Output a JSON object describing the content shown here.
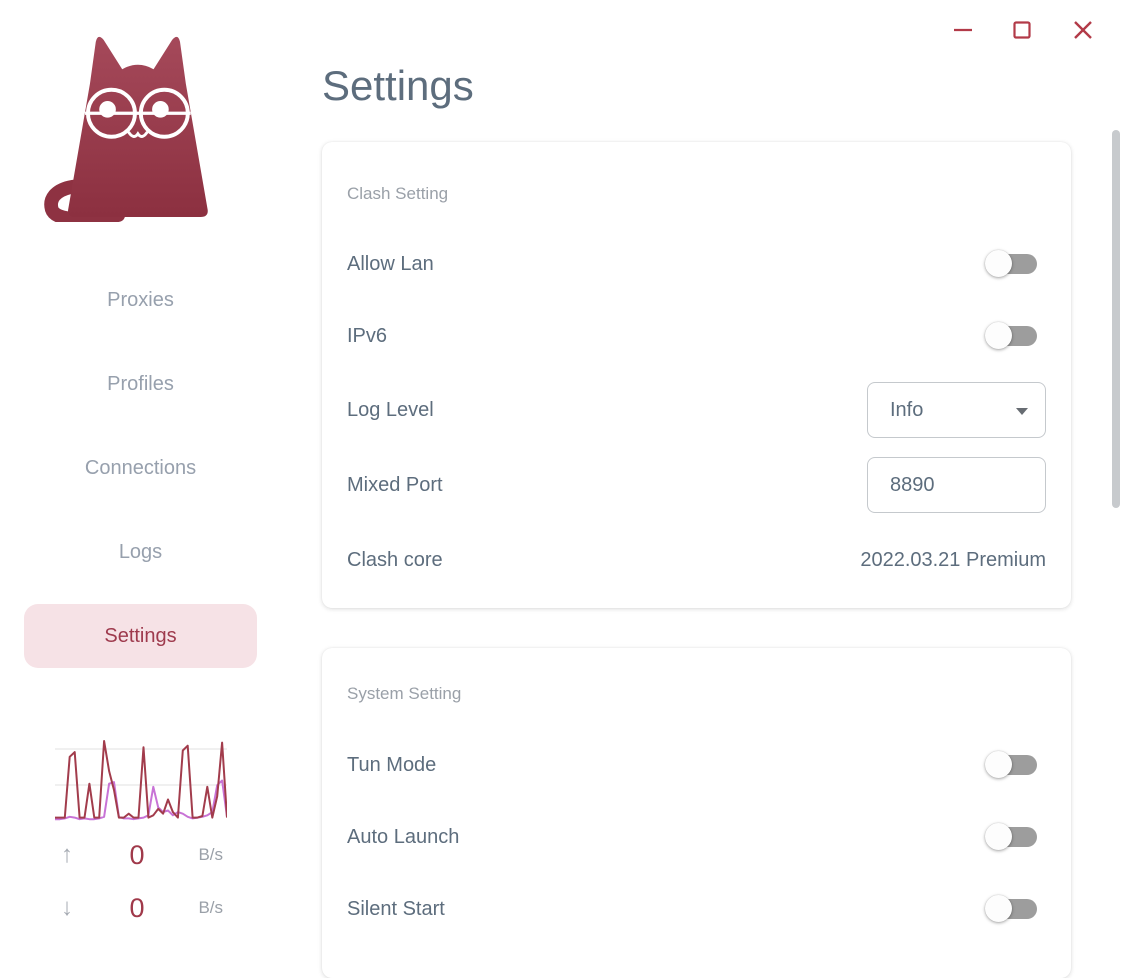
{
  "window": {
    "controls": [
      {
        "name": "minimize"
      },
      {
        "name": "maximize"
      },
      {
        "name": "close"
      }
    ]
  },
  "sidebar": {
    "items": [
      {
        "label": "Proxies",
        "active": false
      },
      {
        "label": "Profiles",
        "active": false
      },
      {
        "label": "Connections",
        "active": false
      },
      {
        "label": "Logs",
        "active": false
      },
      {
        "label": "Settings",
        "active": true
      }
    ],
    "traffic": {
      "up_value": "0",
      "up_unit": "B/s",
      "down_value": "0",
      "down_unit": "B/s"
    }
  },
  "icons": {
    "traffic_up": "↑",
    "traffic_down": "↓"
  },
  "page": {
    "title": "Settings"
  },
  "cards": [
    {
      "section": "Clash Setting",
      "rows": [
        {
          "label": "Allow Lan",
          "control": "toggle",
          "state": "off"
        },
        {
          "label": "IPv6",
          "control": "toggle",
          "state": "off"
        },
        {
          "label": "Log Level",
          "control": "select",
          "value": "Info"
        },
        {
          "label": "Mixed Port",
          "control": "input",
          "value": "8890"
        },
        {
          "label": "Clash core",
          "control": "text",
          "value": "2022.03.21 Premium"
        }
      ]
    },
    {
      "section": "System Setting",
      "rows": [
        {
          "label": "Tun Mode",
          "control": "toggle",
          "state": "off"
        },
        {
          "label": "Auto Launch",
          "control": "toggle",
          "state": "off"
        },
        {
          "label": "Silent Start",
          "control": "toggle",
          "state": "off"
        }
      ]
    }
  ],
  "chart_data": {
    "type": "line",
    "title": "",
    "xlabel": "",
    "ylabel": "",
    "ylim": [
      0,
      100
    ],
    "grid": "horizontal",
    "legend": "none",
    "series": [
      {
        "name": "upload",
        "color": "#c873d6",
        "values": [
          1,
          1,
          2,
          4,
          3,
          1,
          2,
          1,
          1,
          2,
          4,
          46,
          48,
          4,
          2,
          2,
          1,
          2,
          3,
          6,
          42,
          16,
          10,
          12,
          6,
          10,
          8,
          4,
          2,
          3,
          4,
          6,
          10,
          44,
          50,
          4
        ]
      },
      {
        "name": "download",
        "color": "#a23c4c",
        "values": [
          3,
          3,
          3,
          80,
          86,
          3,
          3,
          46,
          3,
          3,
          100,
          62,
          38,
          3,
          3,
          8,
          3,
          3,
          92,
          3,
          6,
          14,
          8,
          26,
          10,
          3,
          88,
          94,
          3,
          3,
          5,
          42,
          3,
          30,
          98,
          3
        ]
      }
    ]
  },
  "colors": {
    "accent_red": "#b23a48",
    "nav_active_bg": "#f6e2e6",
    "nav_active_text": "#9e3a4d",
    "nav_text": "#97a0ad",
    "label_text": "#5d6d7d",
    "section_text": "#9aa0a8",
    "value_red": "#a0394a",
    "toggle_track": "#9d9d9d"
  }
}
